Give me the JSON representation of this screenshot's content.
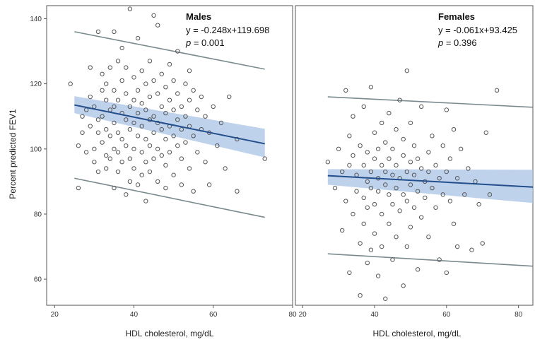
{
  "chart_data": [
    {
      "type": "scatter",
      "panel": "males",
      "xlabel": "HDL cholesterol, mg/dL",
      "ylabel": "Percent predicted FEV1",
      "xlim": [
        18,
        80
      ],
      "ylim": [
        52,
        144
      ],
      "xticks": [
        20,
        40,
        60,
        80
      ],
      "yticks": [
        60,
        80,
        100,
        120,
        140
      ],
      "annotation": {
        "title": "Males",
        "equation": "y = -0.248x+119.698",
        "p_symbol": "p",
        "p_value": " = 0.001"
      },
      "regression": {
        "slope": -0.248,
        "intercept": 119.698,
        "x_range": [
          25,
          73
        ]
      },
      "confidence_band": {
        "x": [
          25,
          73
        ],
        "upper": [
          116.2,
          106.2
        ],
        "lower": [
          111.0,
          97.4
        ]
      },
      "prediction_upper": {
        "x": [
          25,
          73
        ],
        "y": [
          136,
          124.5
        ]
      },
      "prediction_lower": {
        "x": [
          25,
          73
        ],
        "y": [
          91,
          79
        ]
      },
      "points": [
        [
          24,
          120
        ],
        [
          26,
          101
        ],
        [
          26,
          88
        ],
        [
          27,
          105
        ],
        [
          27,
          110
        ],
        [
          28,
          112
        ],
        [
          28,
          99
        ],
        [
          29,
          107
        ],
        [
          29,
          116
        ],
        [
          29,
          125
        ],
        [
          30,
          100
        ],
        [
          30,
          96
        ],
        [
          30,
          113
        ],
        [
          31,
          109
        ],
        [
          31,
          105
        ],
        [
          31,
          93
        ],
        [
          31,
          136
        ],
        [
          32,
          123
        ],
        [
          32,
          118
        ],
        [
          32,
          110
        ],
        [
          32,
          102
        ],
        [
          33,
          98
        ],
        [
          33,
          115
        ],
        [
          33,
          106
        ],
        [
          33,
          94
        ],
        [
          33,
          120
        ],
        [
          34,
          112
        ],
        [
          34,
          104
        ],
        [
          34,
          97
        ],
        [
          34,
          125
        ],
        [
          35,
          118
        ],
        [
          35,
          108
        ],
        [
          35,
          100
        ],
        [
          35,
          113
        ],
        [
          35,
          88
        ],
        [
          35,
          136
        ],
        [
          36,
          127
        ],
        [
          36,
          115
        ],
        [
          36,
          105
        ],
        [
          36,
          99
        ],
        [
          36,
          93
        ],
        [
          37,
          121
        ],
        [
          37,
          111
        ],
        [
          37,
          103
        ],
        [
          37,
          131
        ],
        [
          37,
          96
        ],
        [
          38,
          117
        ],
        [
          38,
          109
        ],
        [
          38,
          101
        ],
        [
          38,
          86
        ],
        [
          38,
          125
        ],
        [
          39,
          113
        ],
        [
          39,
          106
        ],
        [
          39,
          97
        ],
        [
          39,
          90
        ],
        [
          39,
          143
        ],
        [
          40,
          122
        ],
        [
          40,
          115
        ],
        [
          40,
          108
        ],
        [
          40,
          100
        ],
        [
          40,
          94
        ],
        [
          41,
          118
        ],
        [
          41,
          111
        ],
        [
          41,
          104
        ],
        [
          41,
          134
        ],
        [
          41,
          89
        ],
        [
          42,
          124
        ],
        [
          42,
          114
        ],
        [
          42,
          107
        ],
        [
          42,
          99
        ],
        [
          42,
          92
        ],
        [
          43,
          120
        ],
        [
          43,
          112
        ],
        [
          43,
          103
        ],
        [
          43,
          96
        ],
        [
          43,
          84
        ],
        [
          44,
          127
        ],
        [
          44,
          116
        ],
        [
          44,
          109
        ],
        [
          44,
          101
        ],
        [
          44,
          93
        ],
        [
          45,
          141
        ],
        [
          45,
          121
        ],
        [
          45,
          110
        ],
        [
          45,
          105
        ],
        [
          45,
          97
        ],
        [
          46,
          117
        ],
        [
          46,
          108
        ],
        [
          46,
          100
        ],
        [
          46,
          90
        ],
        [
          46,
          138
        ],
        [
          47,
          123
        ],
        [
          47,
          113
        ],
        [
          47,
          106
        ],
        [
          47,
          98
        ],
        [
          48,
          119
        ],
        [
          48,
          111
        ],
        [
          48,
          103
        ],
        [
          48,
          95
        ],
        [
          48,
          88
        ],
        [
          49,
          126
        ],
        [
          49,
          115
        ],
        [
          49,
          107
        ],
        [
          49,
          99
        ],
        [
          50,
          121
        ],
        [
          50,
          112
        ],
        [
          50,
          104
        ],
        [
          50,
          92
        ],
        [
          51,
          117
        ],
        [
          51,
          109
        ],
        [
          51,
          101
        ],
        [
          51,
          130
        ],
        [
          52,
          113
        ],
        [
          52,
          106
        ],
        [
          52,
          97
        ],
        [
          52,
          89
        ],
        [
          53,
          120
        ],
        [
          53,
          110
        ],
        [
          53,
          102
        ],
        [
          54,
          124
        ],
        [
          54,
          115
        ],
        [
          54,
          107
        ],
        [
          54,
          94
        ],
        [
          55,
          118
        ],
        [
          55,
          104
        ],
        [
          55,
          87
        ],
        [
          56,
          112
        ],
        [
          56,
          99
        ],
        [
          57,
          116
        ],
        [
          57,
          106
        ],
        [
          58,
          110
        ],
        [
          58,
          96
        ],
        [
          59,
          105
        ],
        [
          59,
          89
        ],
        [
          60,
          113
        ],
        [
          61,
          101
        ],
        [
          62,
          108
        ],
        [
          63,
          94
        ],
        [
          64,
          116
        ],
        [
          66,
          103
        ],
        [
          66,
          87
        ],
        [
          73,
          97
        ]
      ]
    },
    {
      "type": "scatter",
      "panel": "females",
      "xlabel": "HDL cholesterol, mg/dL",
      "ylabel": "",
      "xlim": [
        18,
        84
      ],
      "ylim": [
        52,
        144
      ],
      "xticks": [
        20,
        40,
        60,
        80
      ],
      "yticks": [],
      "annotation": {
        "title": "Females",
        "equation": "y = -0.061x+93.425",
        "p_symbol": "p",
        "p_value": " = 0.396"
      },
      "regression": {
        "slope": -0.061,
        "intercept": 93.425,
        "x_range": [
          27,
          84
        ]
      },
      "confidence_band": {
        "x": [
          27,
          84
        ],
        "upper": [
          93.8,
          93.6
        ],
        "lower": [
          89.0,
          83.4
        ]
      },
      "prediction_upper": {
        "x": [
          27,
          84
        ],
        "y": [
          116,
          112.8
        ]
      },
      "prediction_lower": {
        "x": [
          27,
          84
        ],
        "y": [
          67.8,
          64
        ]
      },
      "points": [
        [
          27,
          96
        ],
        [
          29,
          88
        ],
        [
          30,
          100
        ],
        [
          31,
          93
        ],
        [
          31,
          75
        ],
        [
          32,
          118
        ],
        [
          32,
          84
        ],
        [
          33,
          104
        ],
        [
          33,
          95
        ],
        [
          33,
          62
        ],
        [
          34,
          98
        ],
        [
          34,
          80
        ],
        [
          34,
          110
        ],
        [
          35,
          92
        ],
        [
          35,
          87
        ],
        [
          36,
          101
        ],
        [
          36,
          71
        ],
        [
          36,
          55
        ],
        [
          37,
          95
        ],
        [
          37,
          85
        ],
        [
          37,
          113
        ],
        [
          37,
          77
        ],
        [
          38,
          90
        ],
        [
          38,
          99
        ],
        [
          38,
          82
        ],
        [
          38,
          65
        ],
        [
          39,
          119
        ],
        [
          39,
          93
        ],
        [
          39,
          88
        ],
        [
          39,
          69
        ],
        [
          40,
          97
        ],
        [
          40,
          83
        ],
        [
          40,
          105
        ],
        [
          40,
          74
        ],
        [
          41,
          91
        ],
        [
          41,
          100
        ],
        [
          41,
          87
        ],
        [
          41,
          61
        ],
        [
          42,
          95
        ],
        [
          42,
          108
        ],
        [
          42,
          80
        ],
        [
          42,
          70
        ],
        [
          43,
          89
        ],
        [
          43,
          102
        ],
        [
          43,
          93
        ],
        [
          43,
          54
        ],
        [
          44,
          86
        ],
        [
          44,
          97
        ],
        [
          44,
          111
        ],
        [
          44,
          77
        ],
        [
          45,
          92
        ],
        [
          45,
          83
        ],
        [
          45,
          100
        ],
        [
          45,
          66
        ],
        [
          46,
          95
        ],
        [
          46,
          88
        ],
        [
          46,
          106
        ],
        [
          46,
          73
        ],
        [
          47,
          91
        ],
        [
          47,
          81
        ],
        [
          47,
          115
        ],
        [
          48,
          98
        ],
        [
          48,
          86
        ],
        [
          48,
          103
        ],
        [
          48,
          58
        ],
        [
          49,
          124
        ],
        [
          49,
          93
        ],
        [
          49,
          84
        ],
        [
          49,
          70
        ],
        [
          50,
          96
        ],
        [
          50,
          89
        ],
        [
          50,
          108
        ],
        [
          50,
          76
        ],
        [
          51,
          92
        ],
        [
          51,
          101
        ],
        [
          51,
          82
        ],
        [
          52,
          87
        ],
        [
          52,
          97
        ],
        [
          52,
          63
        ],
        [
          53,
          94
        ],
        [
          53,
          113
        ],
        [
          53,
          79
        ],
        [
          54,
          90
        ],
        [
          54,
          85
        ],
        [
          55,
          99
        ],
        [
          55,
          93
        ],
        [
          55,
          73
        ],
        [
          56,
          88
        ],
        [
          56,
          104
        ],
        [
          57,
          95
        ],
        [
          57,
          82
        ],
        [
          58,
          91
        ],
        [
          58,
          66
        ],
        [
          59,
          86
        ],
        [
          59,
          101
        ],
        [
          60,
          112
        ],
        [
          60,
          93
        ],
        [
          60,
          62
        ],
        [
          61,
          84
        ],
        [
          61,
          97
        ],
        [
          62,
          106
        ],
        [
          62,
          77
        ],
        [
          63,
          91
        ],
        [
          63,
          70
        ],
        [
          64,
          100
        ],
        [
          65,
          86
        ],
        [
          66,
          94
        ],
        [
          67,
          69
        ],
        [
          68,
          90
        ],
        [
          69,
          83
        ],
        [
          70,
          71
        ],
        [
          71,
          105
        ],
        [
          72,
          86
        ],
        [
          74,
          118
        ]
      ]
    }
  ]
}
